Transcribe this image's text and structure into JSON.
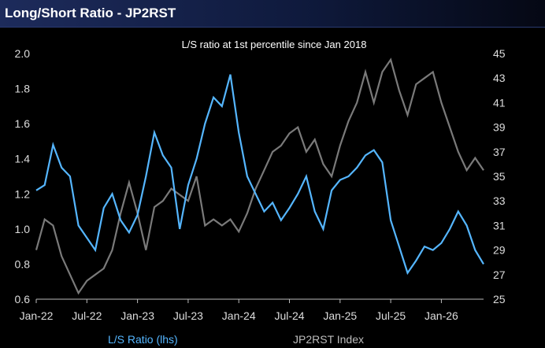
{
  "title": "Long/Short Ratio - JP2RST",
  "colors": {
    "background": "#000000",
    "ratio_line": "#55b6ff",
    "index_line": "#7a7a7a",
    "text": "#dddddd",
    "legend_ratio": "#55b6ff",
    "legend_index": "#bdbdbd"
  },
  "chart_data": {
    "type": "line",
    "annotation": "L/S ratio at 1st percentile since Jan 2018",
    "x_ticks": [
      "Jan-22",
      "Jul-22",
      "Jan-23",
      "Jul-23",
      "Jan-24",
      "Jul-24",
      "Jan-25",
      "Jul-25",
      "Jan-26"
    ],
    "y_left": {
      "ticks": [
        "0.6",
        "0.8",
        "1.0",
        "1.2",
        "1.4",
        "1.6",
        "1.8",
        "2.0"
      ],
      "range": [
        0.6,
        2.0
      ]
    },
    "y_right": {
      "ticks": [
        "25",
        "27",
        "29",
        "31",
        "33",
        "35",
        "37",
        "39",
        "41",
        "43",
        "45"
      ],
      "range": [
        25,
        45
      ]
    },
    "grid": false,
    "legend": [
      "L/S Ratio (lhs)",
      "JP2RST Index"
    ],
    "x_range": [
      0,
      53
    ],
    "series": [
      {
        "name": "L/S Ratio (lhs)",
        "axis": "left",
        "x": [
          0,
          1,
          2,
          3,
          4,
          5,
          6,
          7,
          8,
          9,
          10,
          11,
          12,
          13,
          14,
          15,
          16,
          17,
          18,
          19,
          20,
          21,
          22,
          23,
          24,
          25,
          26,
          27,
          28,
          29,
          30,
          31,
          32,
          33,
          34,
          35,
          36,
          37,
          38,
          39,
          40,
          41,
          42,
          43,
          44,
          45,
          46,
          47,
          48,
          49,
          50,
          51,
          52,
          53
        ],
        "values": [
          1.22,
          1.25,
          1.48,
          1.35,
          1.3,
          1.02,
          0.95,
          0.88,
          1.12,
          1.2,
          1.05,
          0.98,
          1.08,
          1.3,
          1.55,
          1.42,
          1.35,
          1.0,
          1.25,
          1.4,
          1.6,
          1.75,
          1.7,
          1.88,
          1.55,
          1.3,
          1.2,
          1.1,
          1.15,
          1.05,
          1.12,
          1.2,
          1.3,
          1.1,
          1.0,
          1.22,
          1.28,
          1.3,
          1.35,
          1.42,
          1.45,
          1.38,
          1.05,
          0.9,
          0.75,
          0.82,
          0.9,
          0.88,
          0.92,
          1.0,
          1.1,
          1.02,
          0.88,
          0.8
        ]
      },
      {
        "name": "JP2RST Index",
        "axis": "right",
        "x": [
          0,
          1,
          2,
          3,
          4,
          5,
          6,
          7,
          8,
          9,
          10,
          11,
          12,
          13,
          14,
          15,
          16,
          17,
          18,
          19,
          20,
          21,
          22,
          23,
          24,
          25,
          26,
          27,
          28,
          29,
          30,
          31,
          32,
          33,
          34,
          35,
          36,
          37,
          38,
          39,
          40,
          41,
          42,
          43,
          44,
          45,
          46,
          47,
          48,
          49,
          50,
          51,
          52,
          53
        ],
        "values": [
          29.0,
          31.5,
          31.0,
          28.5,
          27.0,
          25.5,
          26.5,
          27.0,
          27.5,
          29.0,
          32.0,
          34.5,
          32.0,
          29.0,
          32.5,
          33.0,
          34.0,
          33.5,
          33.0,
          35.0,
          31.0,
          31.5,
          31.0,
          31.5,
          30.5,
          32.0,
          34.0,
          35.5,
          37.0,
          37.5,
          38.5,
          39.0,
          37.0,
          38.0,
          36.0,
          35.0,
          37.5,
          39.5,
          41.0,
          43.5,
          41.0,
          43.5,
          44.5,
          42.0,
          40.0,
          42.5,
          43.0,
          43.5,
          41.0,
          39.0,
          37.0,
          35.5,
          36.5,
          35.5
        ]
      }
    ]
  }
}
